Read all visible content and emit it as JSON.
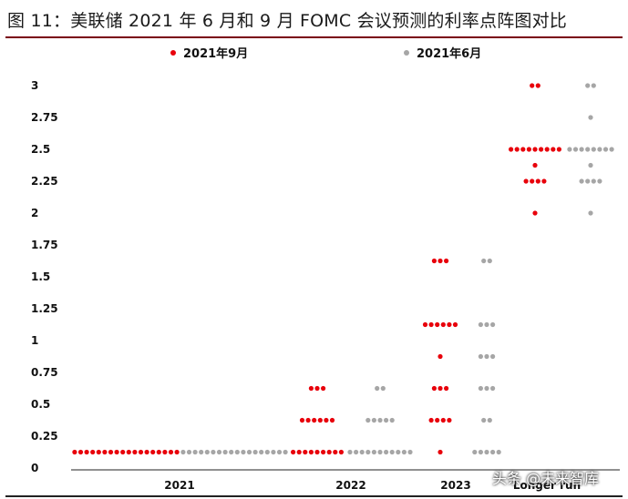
{
  "figure": {
    "title": "图 11：美联储 2021 年 6 月和 9 月 FOMC 会议预测的利率点阵图对比",
    "watermark": "头条 @未来智库"
  },
  "colors": {
    "sep": "#e8000b",
    "jun": "#a6a6a6"
  },
  "chart_data": {
    "type": "scatter",
    "title": "",
    "xlabel": "",
    "ylabel": "",
    "categories": [
      "2021",
      "2022",
      "2023",
      "Longer run"
    ],
    "ylim": [
      0,
      3
    ],
    "yticks": [
      "0",
      "0.25",
      "0.5",
      "0.75",
      "1",
      "1.25",
      "1.5",
      "1.75",
      "2",
      "2.25",
      "2.5",
      "2.75",
      "3"
    ],
    "legend_position": "top",
    "series": [
      {
        "name": "2021年9月",
        "points": [
          {
            "category": "2021",
            "y": 0.125,
            "count": 18
          },
          {
            "category": "2022",
            "y": 0.125,
            "count": 9
          },
          {
            "category": "2022",
            "y": 0.375,
            "count": 6
          },
          {
            "category": "2022",
            "y": 0.625,
            "count": 3
          },
          {
            "category": "2023",
            "y": 0.125,
            "count": 1
          },
          {
            "category": "2023",
            "y": 0.375,
            "count": 4
          },
          {
            "category": "2023",
            "y": 0.625,
            "count": 3
          },
          {
            "category": "2023",
            "y": 0.875,
            "count": 1
          },
          {
            "category": "2023",
            "y": 1.125,
            "count": 6
          },
          {
            "category": "2023",
            "y": 1.625,
            "count": 3
          },
          {
            "category": "Longer run",
            "y": 2.0,
            "count": 1
          },
          {
            "category": "Longer run",
            "y": 2.25,
            "count": 4
          },
          {
            "category": "Longer run",
            "y": 2.375,
            "count": 1
          },
          {
            "category": "Longer run",
            "y": 2.5,
            "count": 9
          },
          {
            "category": "Longer run",
            "y": 3.0,
            "count": 2
          }
        ]
      },
      {
        "name": "2021年6月",
        "points": [
          {
            "category": "2021",
            "y": 0.125,
            "count": 18
          },
          {
            "category": "2022",
            "y": 0.125,
            "count": 11
          },
          {
            "category": "2022",
            "y": 0.375,
            "count": 5
          },
          {
            "category": "2022",
            "y": 0.625,
            "count": 2
          },
          {
            "category": "2023",
            "y": 0.125,
            "count": 5
          },
          {
            "category": "2023",
            "y": 0.375,
            "count": 2
          },
          {
            "category": "2023",
            "y": 0.625,
            "count": 3
          },
          {
            "category": "2023",
            "y": 0.875,
            "count": 3
          },
          {
            "category": "2023",
            "y": 1.125,
            "count": 3
          },
          {
            "category": "2023",
            "y": 1.625,
            "count": 2
          },
          {
            "category": "Longer run",
            "y": 2.0,
            "count": 1
          },
          {
            "category": "Longer run",
            "y": 2.25,
            "count": 4
          },
          {
            "category": "Longer run",
            "y": 2.375,
            "count": 1
          },
          {
            "category": "Longer run",
            "y": 2.5,
            "count": 8
          },
          {
            "category": "Longer run",
            "y": 2.75,
            "count": 1
          },
          {
            "category": "Longer run",
            "y": 3.0,
            "count": 2
          }
        ]
      }
    ]
  }
}
